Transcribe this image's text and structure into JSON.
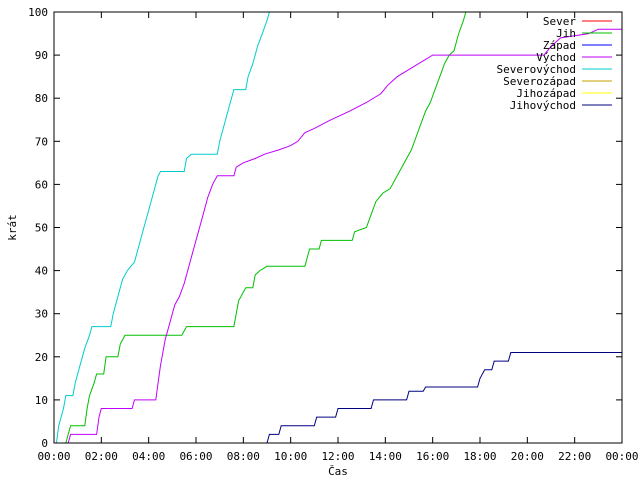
{
  "chart_data": {
    "type": "line",
    "title": "",
    "xlabel": "Čas",
    "ylabel": "krát",
    "x_range": [
      0,
      24
    ],
    "y_range": [
      0,
      100
    ],
    "x_ticks": [
      {
        "value": 0,
        "label": "00:00"
      },
      {
        "value": 2,
        "label": "02:00"
      },
      {
        "value": 4,
        "label": "04:00"
      },
      {
        "value": 6,
        "label": "06:00"
      },
      {
        "value": 8,
        "label": "08:00"
      },
      {
        "value": 10,
        "label": "10:00"
      },
      {
        "value": 12,
        "label": "12:00"
      },
      {
        "value": 14,
        "label": "14:00"
      },
      {
        "value": 16,
        "label": "16:00"
      },
      {
        "value": 18,
        "label": "18:00"
      },
      {
        "value": 20,
        "label": "20:00"
      },
      {
        "value": 22,
        "label": "22:00"
      },
      {
        "value": 24,
        "label": "00:00"
      }
    ],
    "y_ticks": [
      0,
      10,
      20,
      30,
      40,
      50,
      60,
      70,
      80,
      90,
      100
    ],
    "grid": false,
    "legend_position": "top-right",
    "series": [
      {
        "name": "Sever",
        "color": "#ff0000",
        "points": []
      },
      {
        "name": "Jih",
        "color": "#00c000",
        "points": [
          [
            0.5,
            0
          ],
          [
            0.6,
            2
          ],
          [
            0.7,
            4
          ],
          [
            1.3,
            4
          ],
          [
            1.4,
            8
          ],
          [
            1.5,
            11
          ],
          [
            1.7,
            14
          ],
          [
            1.8,
            16
          ],
          [
            2.1,
            16
          ],
          [
            2.2,
            20
          ],
          [
            2.7,
            20
          ],
          [
            2.8,
            23
          ],
          [
            3.0,
            25
          ],
          [
            5.4,
            25
          ],
          [
            5.5,
            26
          ],
          [
            5.6,
            27
          ],
          [
            7.6,
            27
          ],
          [
            7.7,
            30
          ],
          [
            7.8,
            33
          ],
          [
            7.9,
            34
          ],
          [
            8.1,
            36
          ],
          [
            8.4,
            36
          ],
          [
            8.5,
            39
          ],
          [
            8.7,
            40
          ],
          [
            9.0,
            41
          ],
          [
            10.6,
            41
          ],
          [
            10.7,
            43
          ],
          [
            10.8,
            45
          ],
          [
            11.2,
            45
          ],
          [
            11.3,
            47
          ],
          [
            12.6,
            47
          ],
          [
            12.7,
            49
          ],
          [
            13.2,
            50
          ],
          [
            13.4,
            53
          ],
          [
            13.6,
            56
          ],
          [
            13.9,
            58
          ],
          [
            14.2,
            59
          ],
          [
            14.4,
            61
          ],
          [
            14.6,
            63
          ],
          [
            14.9,
            66
          ],
          [
            15.1,
            68
          ],
          [
            15.3,
            71
          ],
          [
            15.5,
            74
          ],
          [
            15.7,
            77
          ],
          [
            15.9,
            79
          ],
          [
            16.1,
            82
          ],
          [
            16.3,
            85
          ],
          [
            16.5,
            88
          ],
          [
            16.7,
            90
          ],
          [
            16.9,
            91
          ],
          [
            17.0,
            93
          ],
          [
            17.1,
            95
          ],
          [
            17.3,
            98
          ],
          [
            17.4,
            100
          ]
        ]
      },
      {
        "name": "Západ",
        "color": "#0000ff",
        "points": []
      },
      {
        "name": "Východ",
        "color": "#c000ff",
        "points": [
          [
            0.6,
            0
          ],
          [
            0.7,
            2
          ],
          [
            1.8,
            2
          ],
          [
            1.9,
            6
          ],
          [
            2.0,
            8
          ],
          [
            3.3,
            8
          ],
          [
            3.4,
            10
          ],
          [
            4.3,
            10
          ],
          [
            4.4,
            14
          ],
          [
            4.5,
            18
          ],
          [
            4.7,
            24
          ],
          [
            4.9,
            28
          ],
          [
            5.1,
            32
          ],
          [
            5.3,
            34
          ],
          [
            5.5,
            37
          ],
          [
            5.7,
            41
          ],
          [
            5.9,
            45
          ],
          [
            6.1,
            49
          ],
          [
            6.3,
            53
          ],
          [
            6.5,
            57
          ],
          [
            6.7,
            60
          ],
          [
            6.9,
            62
          ],
          [
            7.6,
            62
          ],
          [
            7.7,
            64
          ],
          [
            8.0,
            65
          ],
          [
            8.5,
            66
          ],
          [
            8.9,
            67
          ],
          [
            9.5,
            68
          ],
          [
            10.0,
            69
          ],
          [
            10.3,
            70
          ],
          [
            10.6,
            72
          ],
          [
            11.0,
            73
          ],
          [
            11.7,
            75
          ],
          [
            12.5,
            77
          ],
          [
            13.2,
            79
          ],
          [
            13.8,
            81
          ],
          [
            14.1,
            83
          ],
          [
            14.5,
            85
          ],
          [
            15.4,
            88
          ],
          [
            16.0,
            90
          ],
          [
            20.7,
            90
          ],
          [
            21.0,
            92
          ],
          [
            21.4,
            94
          ],
          [
            22.6,
            95
          ],
          [
            23.0,
            96
          ],
          [
            24.0,
            96
          ]
        ]
      },
      {
        "name": "Severovýchod",
        "color": "#00cccc",
        "points": [
          [
            0.1,
            0
          ],
          [
            0.2,
            4
          ],
          [
            0.4,
            8
          ],
          [
            0.5,
            11
          ],
          [
            0.8,
            11
          ],
          [
            0.9,
            14
          ],
          [
            1.1,
            18
          ],
          [
            1.3,
            22
          ],
          [
            1.5,
            25
          ],
          [
            1.6,
            27
          ],
          [
            2.4,
            27
          ],
          [
            2.5,
            30
          ],
          [
            2.7,
            34
          ],
          [
            2.9,
            38
          ],
          [
            3.1,
            40
          ],
          [
            3.4,
            42
          ],
          [
            3.6,
            46
          ],
          [
            3.8,
            50
          ],
          [
            4.0,
            54
          ],
          [
            4.2,
            58
          ],
          [
            4.4,
            62
          ],
          [
            4.5,
            63
          ],
          [
            5.5,
            63
          ],
          [
            5.6,
            66
          ],
          [
            5.8,
            67
          ],
          [
            6.9,
            67
          ],
          [
            7.0,
            70
          ],
          [
            7.2,
            74
          ],
          [
            7.4,
            78
          ],
          [
            7.6,
            82
          ],
          [
            8.1,
            82
          ],
          [
            8.2,
            85
          ],
          [
            8.4,
            88
          ],
          [
            8.6,
            92
          ],
          [
            8.8,
            95
          ],
          [
            9.0,
            98
          ],
          [
            9.1,
            100
          ]
        ]
      },
      {
        "name": "Severozápad",
        "color": "#c0a000",
        "points": []
      },
      {
        "name": "Jihozápad",
        "color": "#ffff00",
        "points": []
      },
      {
        "name": "Jihovýchod",
        "color": "#000080",
        "points": [
          [
            9.0,
            0
          ],
          [
            9.1,
            2
          ],
          [
            9.5,
            2
          ],
          [
            9.6,
            4
          ],
          [
            11.0,
            4
          ],
          [
            11.1,
            6
          ],
          [
            11.9,
            6
          ],
          [
            12.0,
            8
          ],
          [
            13.4,
            8
          ],
          [
            13.5,
            10
          ],
          [
            14.9,
            10
          ],
          [
            15.0,
            12
          ],
          [
            15.6,
            12
          ],
          [
            15.7,
            13
          ],
          [
            17.9,
            13
          ],
          [
            18.0,
            15
          ],
          [
            18.2,
            17
          ],
          [
            18.5,
            17
          ],
          [
            18.6,
            19
          ],
          [
            19.2,
            19
          ],
          [
            19.3,
            21
          ],
          [
            24.0,
            21
          ]
        ]
      }
    ]
  }
}
